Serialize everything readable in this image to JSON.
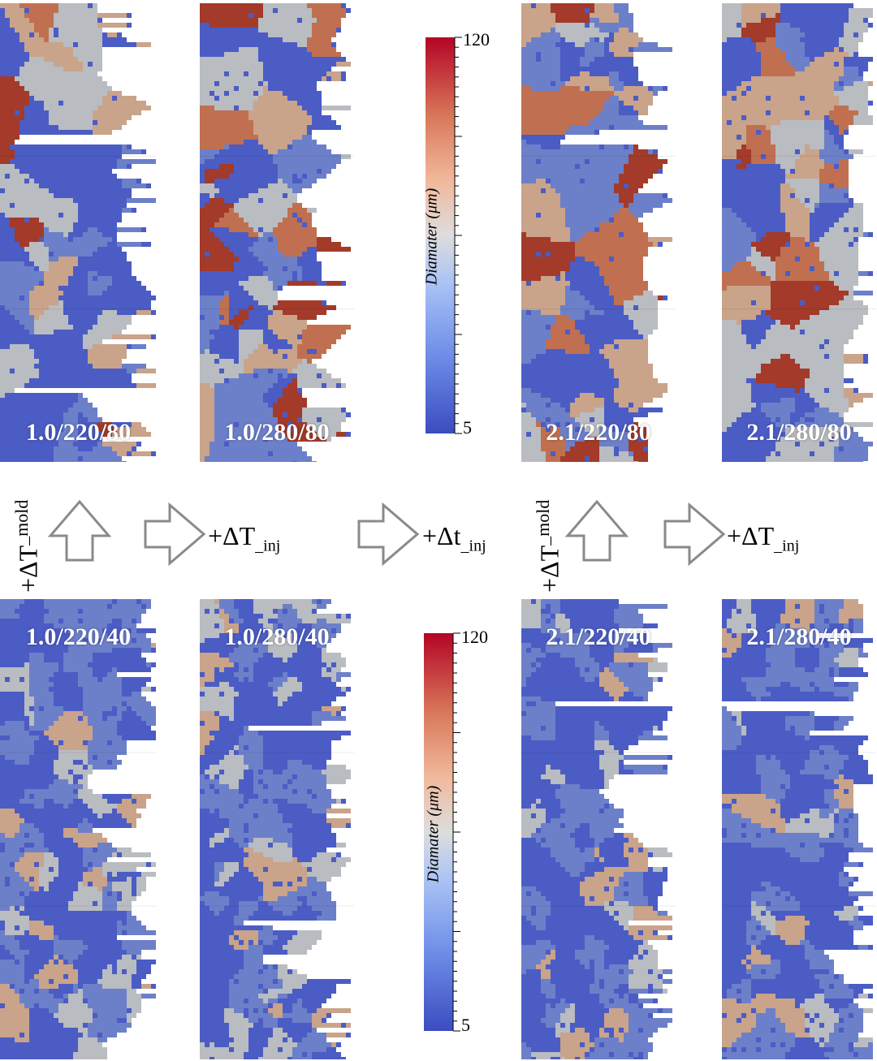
{
  "panels_top": [
    {
      "label": "1.0/220/80"
    },
    {
      "label": "1.0/280/80"
    },
    {
      "label": "2.1/220/80"
    },
    {
      "label": "2.1/280/80"
    }
  ],
  "panels_bottom": [
    {
      "label": "1.0/220/40"
    },
    {
      "label": "1.0/280/40"
    },
    {
      "label": "2.1/220/40"
    },
    {
      "label": "2.1/280/40"
    }
  ],
  "colorbar_top": {
    "max": "120",
    "min": "5",
    "title": "Diamater (μm)"
  },
  "colorbar_bottom": {
    "max": "120",
    "min": "5",
    "title": "Diamater (μm)"
  },
  "annotations": {
    "mold_left": "+ΔT",
    "mold_left_sub": "_mold",
    "inj_1": "+ΔT",
    "inj_1_sub": "_inj",
    "time": "+Δt",
    "time_sub": "_inj",
    "mold_right": "+ΔT",
    "mold_right_sub": "_mold",
    "inj_2": "+ΔT",
    "inj_2_sub": "_inj"
  },
  "colors": {
    "colormap": [
      "#3b4cc0",
      "#6f8ee8",
      "#aac3f5",
      "#dddddd",
      "#f1b89b",
      "#d9785a",
      "#b40426"
    ],
    "grain_dark_blue": "#4b5cc4",
    "grain_blue": "#6c7fc9",
    "grain_grey": "#b9bcc1",
    "grain_tan": "#c9a38a",
    "grain_orange": "#c07050",
    "grain_red": "#a33a2a"
  }
}
